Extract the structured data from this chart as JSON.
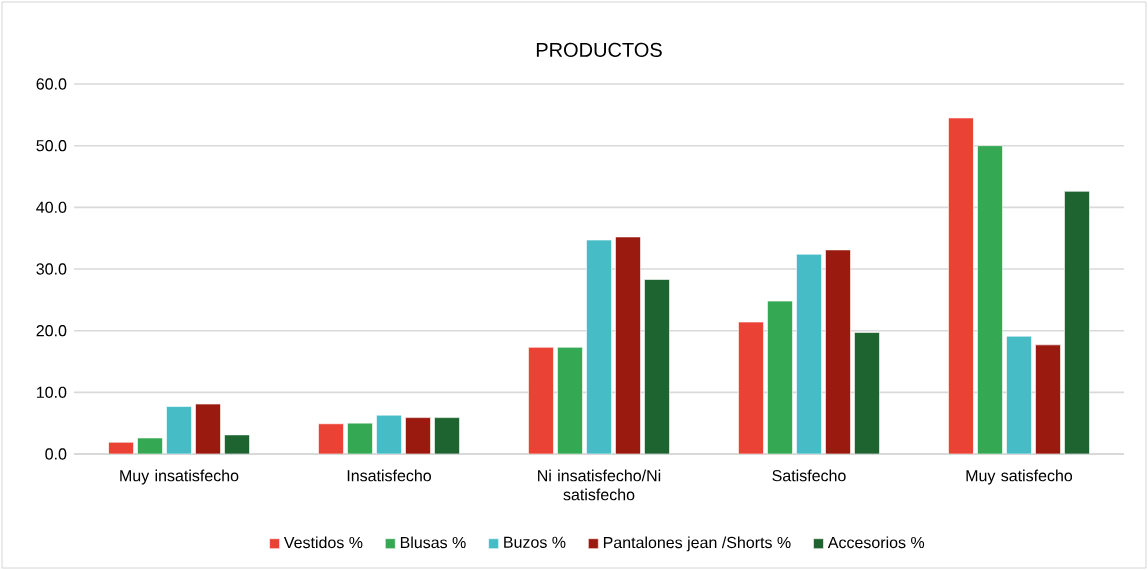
{
  "chart_data": {
    "type": "bar",
    "title": "PRODUCTOS",
    "categories": [
      "Muy insatisfecho",
      "Insatisfecho",
      "Ni insatisfecho/Ni satisfecho",
      "Satisfecho",
      "Muy satisfecho"
    ],
    "series": [
      {
        "name": "Vestidos %",
        "color": "#ea4335",
        "values": [
          1.9,
          4.9,
          17.3,
          21.4,
          54.5
        ]
      },
      {
        "name": "Blusas %",
        "color": "#34a853",
        "values": [
          2.6,
          5.0,
          17.3,
          24.8,
          50.0
        ]
      },
      {
        "name": "Buzos %",
        "color": "#46bdc6",
        "values": [
          7.7,
          6.3,
          34.7,
          32.4,
          19.1
        ]
      },
      {
        "name": "Pantalones jean /Shorts %",
        "color": "#9a1a10",
        "values": [
          8.1,
          5.9,
          35.2,
          33.1,
          17.7
        ]
      },
      {
        "name": "Accesorios %",
        "color": "#1e6430",
        "values": [
          3.1,
          5.9,
          28.3,
          19.7,
          42.6
        ]
      }
    ],
    "ylim": [
      0,
      60
    ],
    "yticks": [
      {
        "value": 0,
        "label": "0.0"
      },
      {
        "value": 10,
        "label": "10.0"
      },
      {
        "value": 20,
        "label": "20.0"
      },
      {
        "value": 30,
        "label": "30.0"
      },
      {
        "value": 40,
        "label": "40.0"
      },
      {
        "value": 50,
        "label": "50.0"
      },
      {
        "value": 60,
        "label": "60.0"
      }
    ],
    "grid": "y",
    "legend": "bottom"
  }
}
